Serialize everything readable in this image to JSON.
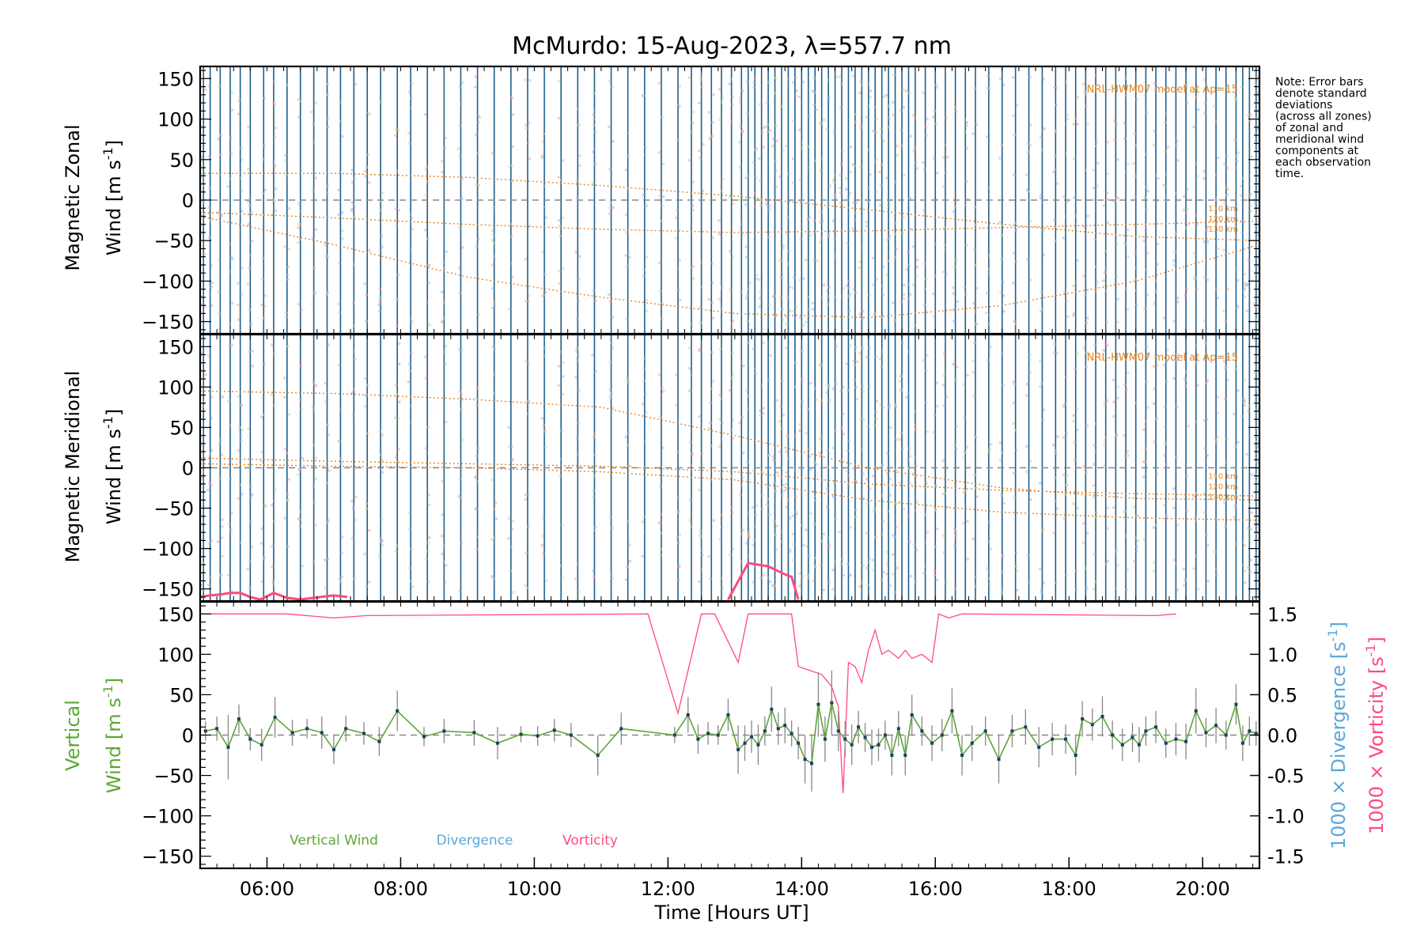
{
  "title": "McMurdo: 15-Aug-2023, λ=557.7 nm",
  "note": [
    "Note: Error bars",
    "denote standard",
    "deviations",
    "(across all zones)",
    "of zonal and",
    "meridional wind",
    "components at",
    "each observation",
    "time."
  ],
  "colors": {
    "vertical": "#5aa832",
    "divergence": "#58a8d8",
    "vorticity": "#ff4a7a",
    "model": "#e8841e",
    "obsline": "#1e5f8e",
    "errbar": "#888888",
    "marker": "#1f3f5f"
  },
  "chart_data": [
    {
      "type": "scatter",
      "panel": "zonal",
      "ylabel_line1": "Magnetic Zonal",
      "ylabel_line2": "Wind [m s",
      "ylabel_sup": "-1",
      "ylabel_close": "]",
      "ylim": [
        -165,
        165
      ],
      "yticks": [
        -150,
        -100,
        -50,
        0,
        50,
        100,
        150
      ],
      "model_label": "NRL-HWM07 model at Ap=15",
      "model_levels": [
        "110 km",
        "120 km",
        "130 km"
      ],
      "model_curves": [
        {
          "name": "110 km",
          "x": [
            5.0,
            7.0,
            9.0,
            11.0,
            13.0,
            15.0,
            17.0,
            19.0,
            20.85
          ],
          "y": [
            -15,
            -22,
            -30,
            -36,
            -40,
            -38,
            -34,
            -30,
            -26
          ]
        },
        {
          "name": "120 km",
          "x": [
            5.0,
            7.0,
            9.0,
            11.0,
            13.0,
            15.0,
            17.0,
            19.0,
            20.85
          ],
          "y": [
            -20,
            -55,
            -95,
            -120,
            -140,
            -145,
            -130,
            -100,
            -55
          ]
        },
        {
          "name": "130 km",
          "x": [
            5.0,
            7.0,
            9.0,
            11.0,
            13.0,
            15.0,
            17.0,
            19.0,
            20.85
          ],
          "y": [
            33,
            33,
            28,
            18,
            5,
            -12,
            -30,
            -45,
            -50
          ]
        }
      ]
    },
    {
      "type": "scatter",
      "panel": "meridional",
      "ylabel_line1": "Magnetic Meridional",
      "ylabel_line2": "Wind [m s",
      "ylabel_sup": "-1",
      "ylabel_close": "]",
      "ylim": [
        -165,
        165
      ],
      "yticks": [
        -150,
        -100,
        -50,
        0,
        50,
        100,
        150
      ],
      "model_label": "NRL-HWM07 model at Ap=15",
      "model_levels": [
        "110 km",
        "120 km",
        "130 km"
      ],
      "model_curves": [
        {
          "name": "110 km",
          "x": [
            5.0,
            7.0,
            9.0,
            11.0,
            13.0,
            15.0,
            17.0,
            19.0,
            20.85
          ],
          "y": [
            95,
            92,
            85,
            75,
            40,
            0,
            -25,
            -38,
            -40
          ]
        },
        {
          "name": "120 km",
          "x": [
            5.0,
            7.0,
            9.0,
            11.0,
            13.0,
            15.0,
            17.0,
            19.0,
            20.85
          ],
          "y": [
            12,
            8,
            5,
            2,
            -5,
            -20,
            -28,
            -32,
            -35
          ]
        },
        {
          "name": "130 km",
          "x": [
            5.0,
            7.0,
            9.0,
            11.0,
            13.0,
            15.0,
            17.0,
            19.0,
            20.85
          ],
          "y": [
            5,
            2,
            0,
            -5,
            -15,
            -40,
            -55,
            -62,
            -65
          ]
        }
      ],
      "vorticity_trace": {
        "x": [
          5.0,
          5.15,
          5.3,
          5.45,
          5.6,
          5.75,
          5.9,
          6.1,
          6.3,
          6.5,
          6.8,
          7.0,
          7.2,
          12.9,
          13.2,
          13.5,
          13.75,
          13.85,
          13.95
        ],
        "y": [
          -160,
          -158,
          -157,
          -155,
          -155,
          -160,
          -163,
          -155,
          -161,
          -163,
          -160,
          -158,
          -160,
          -163,
          -118,
          -122,
          -132,
          -135,
          -163
        ]
      }
    },
    {
      "type": "line",
      "panel": "vertical",
      "ylabel_line1": "Vertical",
      "ylabel_line2": "Wind [m s",
      "ylabel_sup": "-1",
      "ylabel_close": "]",
      "ylim": [
        -165,
        165
      ],
      "yticks": [
        -150,
        -100,
        -50,
        0,
        50,
        100,
        150
      ],
      "right_ticks": [
        "-1.5",
        "-1.0",
        "-0.5",
        "0.0",
        "0.5",
        "1.0",
        "1.5"
      ],
      "right_tick_values": [
        -1.5,
        -1.0,
        -0.5,
        0.0,
        0.5,
        1.0,
        1.5
      ],
      "right_label_div": "1000 × Divergence [s",
      "right_label_vort": "1000 × Vorticity [s",
      "right_label_sup": "-1",
      "right_label_close": "]",
      "xlabel": "Time [Hours UT]",
      "xlim": [
        5.0,
        20.85
      ],
      "xticks": [
        "06:00",
        "08:00",
        "10:00",
        "12:00",
        "14:00",
        "16:00",
        "18:00",
        "20:00"
      ],
      "xtick_values": [
        6,
        8,
        10,
        12,
        14,
        16,
        18,
        20
      ],
      "legend": [
        "Vertical Wind",
        "Divergence",
        "Vorticity"
      ],
      "series": [
        {
          "name": "Vertical Wind",
          "x": [
            5.08,
            5.25,
            5.42,
            5.58,
            5.75,
            5.92,
            6.12,
            6.38,
            6.6,
            6.82,
            7.0,
            7.18,
            7.45,
            7.68,
            7.95,
            8.35,
            8.65,
            9.1,
            9.45,
            9.8,
            10.05,
            10.3,
            10.55,
            10.95,
            11.3,
            12.1,
            12.3,
            12.45,
            12.6,
            12.75,
            12.9,
            13.05,
            13.15,
            13.25,
            13.35,
            13.45,
            13.55,
            13.65,
            13.75,
            13.85,
            13.95,
            14.05,
            14.15,
            14.25,
            14.35,
            14.45,
            14.55,
            14.65,
            14.75,
            14.85,
            14.95,
            15.05,
            15.15,
            15.25,
            15.35,
            15.45,
            15.55,
            15.65,
            15.8,
            15.95,
            16.1,
            16.25,
            16.4,
            16.55,
            16.75,
            16.95,
            17.15,
            17.35,
            17.55,
            17.75,
            17.95,
            18.1,
            18.2,
            18.35,
            18.5,
            18.65,
            18.8,
            18.95,
            19.05,
            19.15,
            19.3,
            19.45,
            19.6,
            19.75,
            19.9,
            20.05,
            20.2,
            20.35,
            20.5,
            20.6,
            20.7,
            20.8
          ],
          "y": [
            5,
            8,
            -15,
            20,
            -5,
            -12,
            22,
            3,
            8,
            3,
            -18,
            8,
            2,
            -8,
            30,
            -2,
            5,
            3,
            -10,
            1,
            -1,
            6,
            0,
            -25,
            8,
            0,
            25,
            -5,
            2,
            0,
            25,
            -18,
            -10,
            -2,
            -12,
            5,
            32,
            8,
            12,
            2,
            -10,
            -30,
            -35,
            38,
            -5,
            40,
            5,
            -5,
            -12,
            10,
            -3,
            -15,
            -12,
            0,
            -25,
            8,
            -25,
            25,
            5,
            -10,
            0,
            30,
            -25,
            -10,
            5,
            -30,
            5,
            10,
            -15,
            -5,
            -5,
            -25,
            20,
            13,
            23,
            0,
            -12,
            -3,
            -12,
            5,
            10,
            -10,
            -5,
            -8,
            30,
            3,
            12,
            0,
            38,
            -10,
            5,
            2
          ],
          "err": [
            12,
            15,
            40,
            18,
            14,
            20,
            25,
            16,
            12,
            20,
            18,
            16,
            14,
            18,
            25,
            12,
            15,
            16,
            20,
            10,
            12,
            14,
            15,
            25,
            20,
            10,
            22,
            18,
            14,
            12,
            20,
            30,
            22,
            20,
            25,
            18,
            28,
            20,
            22,
            16,
            20,
            30,
            35,
            40,
            28,
            40,
            25,
            22,
            25,
            20,
            18,
            22,
            20,
            18,
            25,
            22,
            25,
            25,
            18,
            22,
            20,
            28,
            25,
            22,
            18,
            30,
            20,
            22,
            25,
            20,
            18,
            25,
            22,
            20,
            25,
            18,
            20,
            18,
            22,
            18,
            20,
            18,
            20,
            22,
            28,
            18,
            22,
            18,
            25,
            22,
            18,
            15
          ]
        },
        {
          "name": "Vorticity",
          "axis_units": "1000 × s^-1",
          "x": [
            5.0,
            5.6,
            6.3,
            7.0,
            7.5,
            11.7,
            12.15,
            12.5,
            12.7,
            13.05,
            13.2,
            13.35,
            13.7,
            13.85,
            13.95,
            14.3,
            14.45,
            14.55,
            14.62,
            14.7,
            14.8,
            14.9,
            15.0,
            15.1,
            15.2,
            15.3,
            15.45,
            15.55,
            15.65,
            15.8,
            15.95,
            16.05,
            16.2,
            16.4,
            19.3,
            19.6
          ],
          "y": [
            1.5,
            1.5,
            1.5,
            1.45,
            1.48,
            1.5,
            0.27,
            1.5,
            1.5,
            0.9,
            1.5,
            1.5,
            1.5,
            1.5,
            0.85,
            0.75,
            0.6,
            0.35,
            -0.72,
            0.9,
            0.85,
            0.65,
            1.05,
            1.3,
            1.0,
            1.05,
            0.95,
            1.05,
            0.95,
            1.0,
            0.9,
            1.5,
            1.45,
            1.5,
            1.48,
            1.5
          ]
        },
        {
          "name": "Divergence",
          "axis_units": "1000 × s^-1",
          "x": [],
          "y": []
        }
      ]
    }
  ],
  "observation_times": [
    5.05,
    5.15,
    5.3,
    5.45,
    5.6,
    5.75,
    5.95,
    6.1,
    6.3,
    6.5,
    6.7,
    6.9,
    7.1,
    7.3,
    7.5,
    7.7,
    7.95,
    8.15,
    8.4,
    8.65,
    8.9,
    9.15,
    9.4,
    9.65,
    9.9,
    10.15,
    10.4,
    10.65,
    10.9,
    11.15,
    11.4,
    11.65,
    11.9,
    12.15,
    12.35,
    12.5,
    12.65,
    12.8,
    12.95,
    13.1,
    13.2,
    13.3,
    13.4,
    13.5,
    13.6,
    13.7,
    13.8,
    13.9,
    14.0,
    14.1,
    14.2,
    14.3,
    14.4,
    14.5,
    14.6,
    14.7,
    14.8,
    14.9,
    15.0,
    15.1,
    15.2,
    15.3,
    15.4,
    15.5,
    15.6,
    15.7,
    15.85,
    16.0,
    16.15,
    16.3,
    16.45,
    16.6,
    16.8,
    17.0,
    17.2,
    17.4,
    17.6,
    17.8,
    17.95,
    18.1,
    18.25,
    18.4,
    18.55,
    18.7,
    18.85,
    19.0,
    19.15,
    19.3,
    19.45,
    19.6,
    19.75,
    19.9,
    20.05,
    20.2,
    20.35,
    20.5,
    20.6,
    20.7,
    20.8
  ]
}
